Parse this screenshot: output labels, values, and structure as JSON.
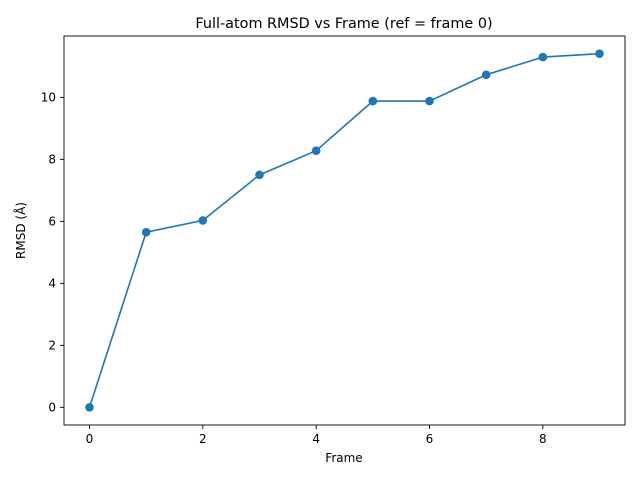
{
  "chart_data": {
    "type": "line",
    "title": "Full-atom RMSD vs Frame (ref = frame 0)",
    "xlabel": "Frame",
    "ylabel": "RMSD (Å)",
    "xlim": [
      -0.45,
      9.45
    ],
    "ylim": [
      -0.57,
      11.98
    ],
    "xticks": [
      0,
      2,
      4,
      6,
      8
    ],
    "yticks": [
      0,
      2,
      4,
      6,
      8,
      10
    ],
    "grid": false,
    "markers": true,
    "color": "#1f77b4",
    "series": [
      {
        "x": [
          0,
          1,
          2,
          3,
          4,
          5,
          6,
          7,
          8,
          9
        ],
        "values": [
          0.0,
          5.65,
          6.03,
          7.5,
          8.28,
          9.88,
          9.88,
          10.73,
          11.3,
          11.41
        ]
      }
    ]
  }
}
